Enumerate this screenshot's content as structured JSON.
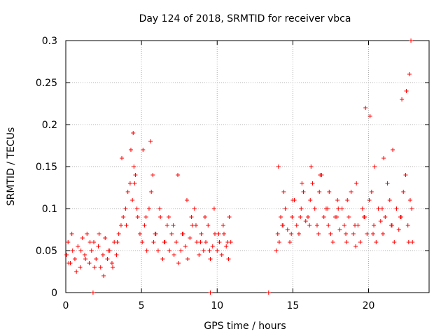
{
  "chart_data": {
    "type": "scatter",
    "title": "Day 124 of 2018, SRMTID for receiver vbca",
    "xlabel": "GPS time / hours",
    "ylabel": "SRMTID / TECUs",
    "xlim": [
      0,
      24
    ],
    "ylim": [
      0,
      0.3
    ],
    "xticks": [
      0,
      5,
      10,
      15,
      20
    ],
    "xtick_labels": [
      "0",
      "5",
      "10",
      "15",
      "20"
    ],
    "yticks": [
      0,
      0.05,
      0.1,
      0.15,
      0.2,
      0.25,
      0.3
    ],
    "ytick_labels": [
      "0",
      "0.05",
      "0.1",
      "0.15",
      "0.2",
      "0.25",
      "0.3"
    ],
    "grid": true,
    "marker": "+",
    "marker_color": "#ff0000",
    "series": [
      {
        "name": "SRMTID",
        "note": "representative subset of dense scatter; data gap ~11.0h to ~13.8h",
        "x": [
          0.05,
          0.15,
          0.3,
          0.45,
          0.6,
          0.8,
          0.95,
          1.1,
          1.25,
          1.4,
          1.55,
          1.7,
          1.85,
          2.0,
          2.15,
          2.3,
          2.45,
          2.6,
          2.75,
          2.9,
          3.05,
          3.2,
          3.35,
          3.5,
          3.65,
          3.8,
          3.95,
          4.1,
          4.25,
          4.4,
          4.5,
          4.6,
          4.75,
          4.9,
          5.05,
          5.2,
          5.35,
          5.5,
          5.65,
          5.8,
          5.95,
          6.1,
          6.25,
          6.4,
          6.55,
          6.7,
          6.85,
          7.0,
          7.15,
          7.3,
          7.45,
          7.6,
          7.75,
          7.9,
          8.05,
          8.2,
          8.35,
          8.5,
          8.65,
          8.8,
          8.95,
          9.1,
          9.25,
          9.4,
          9.55,
          9.7,
          9.85,
          10.0,
          10.15,
          10.3,
          10.45,
          10.6,
          10.75,
          10.9,
          13.9,
          14.0,
          14.1,
          14.2,
          14.35,
          14.5,
          14.65,
          14.8,
          14.95,
          15.1,
          15.25,
          15.4,
          15.55,
          15.7,
          15.85,
          16.0,
          16.15,
          16.3,
          16.45,
          16.6,
          16.75,
          16.9,
          17.05,
          17.2,
          17.35,
          17.5,
          17.65,
          17.8,
          17.95,
          18.1,
          18.25,
          18.4,
          18.55,
          18.7,
          18.85,
          19.0,
          19.15,
          19.3,
          19.45,
          19.6,
          19.75,
          19.9,
          20.05,
          20.2,
          20.35,
          20.5,
          20.65,
          20.8,
          20.95,
          21.1,
          21.25,
          21.4,
          21.55,
          21.7,
          21.85,
          22.0,
          22.15,
          22.3,
          22.45,
          22.6,
          22.75,
          22.85,
          22.9,
          0.2,
          0.7,
          1.3,
          1.9,
          2.5,
          3.1,
          3.7,
          4.3,
          4.45,
          4.55,
          5.1,
          5.6,
          5.75,
          6.2,
          6.8,
          7.4,
          8.0,
          8.6,
          9.2,
          9.8,
          10.4,
          10.8,
          14.05,
          14.4,
          15.0,
          15.6,
          16.2,
          16.8,
          17.4,
          18.0,
          18.6,
          19.2,
          19.8,
          20.1,
          20.4,
          21.0,
          21.6,
          22.2,
          22.5,
          22.7,
          22.8,
          0.4,
          1.0,
          1.6,
          2.2,
          2.8,
          3.4,
          4.0,
          4.7,
          5.3,
          5.9,
          6.5,
          7.1,
          7.7,
          8.3,
          8.9,
          9.5,
          10.1,
          10.7,
          14.3,
          14.9,
          15.5,
          16.1,
          16.7,
          17.3,
          17.9,
          18.5,
          19.1,
          19.7,
          20.3,
          20.9,
          21.5,
          22.1,
          22.65,
          1.8,
          9.55,
          13.4
        ],
        "y": [
          0.045,
          0.06,
          0.035,
          0.05,
          0.04,
          0.055,
          0.03,
          0.065,
          0.045,
          0.07,
          0.035,
          0.05,
          0.06,
          0.04,
          0.055,
          0.03,
          0.045,
          0.065,
          0.04,
          0.05,
          0.035,
          0.06,
          0.045,
          0.07,
          0.08,
          0.09,
          0.1,
          0.12,
          0.13,
          0.11,
          0.15,
          0.14,
          0.09,
          0.07,
          0.06,
          0.08,
          0.05,
          0.1,
          0.12,
          0.06,
          0.07,
          0.05,
          0.09,
          0.04,
          0.06,
          0.08,
          0.05,
          0.07,
          0.045,
          0.06,
          0.035,
          0.05,
          0.07,
          0.055,
          0.04,
          0.065,
          0.08,
          0.1,
          0.06,
          0.045,
          0.07,
          0.05,
          0.06,
          0.08,
          0.04,
          0.055,
          0.07,
          0.05,
          0.06,
          0.045,
          0.07,
          0.055,
          0.04,
          0.06,
          0.05,
          0.07,
          0.06,
          0.09,
          0.08,
          0.1,
          0.075,
          0.06,
          0.09,
          0.11,
          0.08,
          0.07,
          0.1,
          0.12,
          0.085,
          0.09,
          0.11,
          0.13,
          0.1,
          0.08,
          0.12,
          0.14,
          0.09,
          0.1,
          0.08,
          0.07,
          0.06,
          0.09,
          0.11,
          0.075,
          0.1,
          0.08,
          0.06,
          0.09,
          0.12,
          0.07,
          0.055,
          0.08,
          0.06,
          0.1,
          0.09,
          0.07,
          0.11,
          0.12,
          0.08,
          0.06,
          0.1,
          0.085,
          0.07,
          0.09,
          0.13,
          0.11,
          0.08,
          0.06,
          0.1,
          0.075,
          0.09,
          0.12,
          0.14,
          0.08,
          0.11,
          0.1,
          0.06,
          0.035,
          0.025,
          0.04,
          0.03,
          0.02,
          0.03,
          0.16,
          0.17,
          0.19,
          0.13,
          0.17,
          0.18,
          0.14,
          0.1,
          0.09,
          0.14,
          0.11,
          0.08,
          0.09,
          0.1,
          0.08,
          0.09,
          0.15,
          0.12,
          0.11,
          0.13,
          0.15,
          0.14,
          0.12,
          0.1,
          0.11,
          0.13,
          0.22,
          0.21,
          0.15,
          0.16,
          0.17,
          0.23,
          0.24,
          0.26,
          0.3,
          0.07,
          0.05,
          0.06,
          0.07,
          0.05,
          0.06,
          0.08,
          0.1,
          0.09,
          0.07,
          0.06,
          0.08,
          0.07,
          0.09,
          0.06,
          0.05,
          0.07,
          0.06,
          0.08,
          0.07,
          0.09,
          0.08,
          0.07,
          0.1,
          0.09,
          0.07,
          0.08,
          0.09,
          0.07,
          0.1,
          0.08,
          0.09,
          0.06,
          0.0,
          0.0,
          0.0
        ]
      }
    ]
  }
}
